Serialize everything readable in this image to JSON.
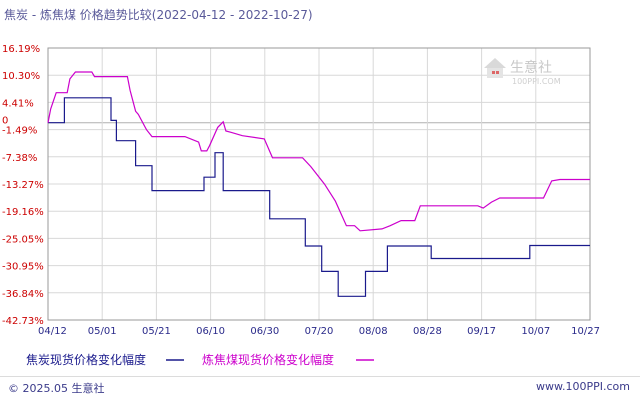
{
  "chart_data": {
    "type": "line",
    "title": "焦炭 - 炼焦煤 价格趋势比较(2022-04-12 - 2022-10-27)",
    "x_tick_labels": [
      "04/12",
      "05/01",
      "05/21",
      "06/10",
      "06/30",
      "07/20",
      "08/08",
      "08/28",
      "09/17",
      "10/07",
      "10/27"
    ],
    "y_tick_labels": [
      "16.19%",
      "10.30%",
      "4.41%",
      "-1.49%",
      "-7.38%",
      "-13.27%",
      "-19.16%",
      "-25.05%",
      "-30.95%",
      "-36.84%",
      "-42.73%"
    ],
    "zero_label": "0",
    "x_range": [
      "2022-04-12",
      "2022-10-27"
    ],
    "ylim": [
      -42.73,
      16.19
    ],
    "grid": true,
    "legend_position": "bottom",
    "series": [
      {
        "name": "焦炭现货价格变化幅度",
        "color": "#1a1a8c",
        "points": [
          [
            "2022-04-12",
            0
          ],
          [
            "2022-04-18",
            0
          ],
          [
            "2022-04-18",
            5.4
          ],
          [
            "2022-05-05",
            5.4
          ],
          [
            "2022-05-05",
            0.5
          ],
          [
            "2022-05-07",
            0.5
          ],
          [
            "2022-05-07",
            -3.9
          ],
          [
            "2022-05-14",
            -3.9
          ],
          [
            "2022-05-14",
            -9.3
          ],
          [
            "2022-05-20",
            -9.3
          ],
          [
            "2022-05-20",
            -14.7
          ],
          [
            "2022-06-08",
            -14.7
          ],
          [
            "2022-06-08",
            -11.8
          ],
          [
            "2022-06-12",
            -11.8
          ],
          [
            "2022-06-12",
            -6.5
          ],
          [
            "2022-06-15",
            -6.5
          ],
          [
            "2022-06-15",
            -14.7
          ],
          [
            "2022-07-02",
            -14.7
          ],
          [
            "2022-07-02",
            -20.8
          ],
          [
            "2022-07-15",
            -20.8
          ],
          [
            "2022-07-15",
            -26.7
          ],
          [
            "2022-07-21",
            -26.7
          ],
          [
            "2022-07-21",
            -32.2
          ],
          [
            "2022-07-27",
            -32.2
          ],
          [
            "2022-07-27",
            -37.6
          ],
          [
            "2022-08-06",
            -37.6
          ],
          [
            "2022-08-06",
            -32.2
          ],
          [
            "2022-08-14",
            -32.2
          ],
          [
            "2022-08-14",
            -26.7
          ],
          [
            "2022-08-30",
            -26.7
          ],
          [
            "2022-08-30",
            -29.4
          ],
          [
            "2022-10-05",
            -29.4
          ],
          [
            "2022-10-05",
            -26.6
          ],
          [
            "2022-10-27",
            -26.6
          ]
        ]
      },
      {
        "name": "炼焦煤现货价格变化幅度",
        "color": "#cc00cc",
        "points": [
          [
            "2022-04-12",
            0
          ],
          [
            "2022-04-13",
            3.0
          ],
          [
            "2022-04-15",
            6.5
          ],
          [
            "2022-04-19",
            6.5
          ],
          [
            "2022-04-20",
            9.5
          ],
          [
            "2022-04-22",
            11.0
          ],
          [
            "2022-04-28",
            11.0
          ],
          [
            "2022-04-29",
            10.0
          ],
          [
            "2022-05-11",
            10.0
          ],
          [
            "2022-05-12",
            7.0
          ],
          [
            "2022-05-14",
            2.5
          ],
          [
            "2022-05-15",
            1.8
          ],
          [
            "2022-05-18",
            -1.5
          ],
          [
            "2022-05-20",
            -3.0
          ],
          [
            "2022-06-01",
            -3.0
          ],
          [
            "2022-06-06",
            -4.2
          ],
          [
            "2022-06-07",
            -6.1
          ],
          [
            "2022-06-09",
            -6.1
          ],
          [
            "2022-06-10",
            -5.0
          ],
          [
            "2022-06-13",
            -1.0
          ],
          [
            "2022-06-15",
            0.2
          ],
          [
            "2022-06-16",
            -1.8
          ],
          [
            "2022-06-18",
            -2.1
          ],
          [
            "2022-06-22",
            -2.8
          ],
          [
            "2022-06-30",
            -3.5
          ],
          [
            "2022-07-03",
            -7.6
          ],
          [
            "2022-07-14",
            -7.6
          ],
          [
            "2022-07-17",
            -9.5
          ],
          [
            "2022-07-22",
            -13.3
          ],
          [
            "2022-07-26",
            -17.0
          ],
          [
            "2022-07-30",
            -22.3
          ],
          [
            "2022-08-02",
            -22.3
          ],
          [
            "2022-08-04",
            -23.4
          ],
          [
            "2022-08-12",
            -23.0
          ],
          [
            "2022-08-15",
            -22.3
          ],
          [
            "2022-08-19",
            -21.2
          ],
          [
            "2022-08-24",
            -21.2
          ],
          [
            "2022-08-26",
            -18.0
          ],
          [
            "2022-09-16",
            -18.0
          ],
          [
            "2022-09-18",
            -18.5
          ],
          [
            "2022-09-21",
            -17.2
          ],
          [
            "2022-09-24",
            -16.3
          ],
          [
            "2022-10-10",
            -16.3
          ],
          [
            "2022-10-13",
            -12.6
          ],
          [
            "2022-10-16",
            -12.3
          ],
          [
            "2022-10-27",
            -12.3
          ]
        ]
      }
    ]
  },
  "watermark": {
    "logo_text": "生意社",
    "logo_url": "100PPI.COM"
  },
  "footer": {
    "left": "© 2025.05 生意社",
    "right": "www.100PPI.com"
  },
  "colors": {
    "axis_label": "#cc0000",
    "x_label": "#2a2a8a",
    "grid": "#d8d8d8",
    "frame": "#9a9a9a"
  }
}
